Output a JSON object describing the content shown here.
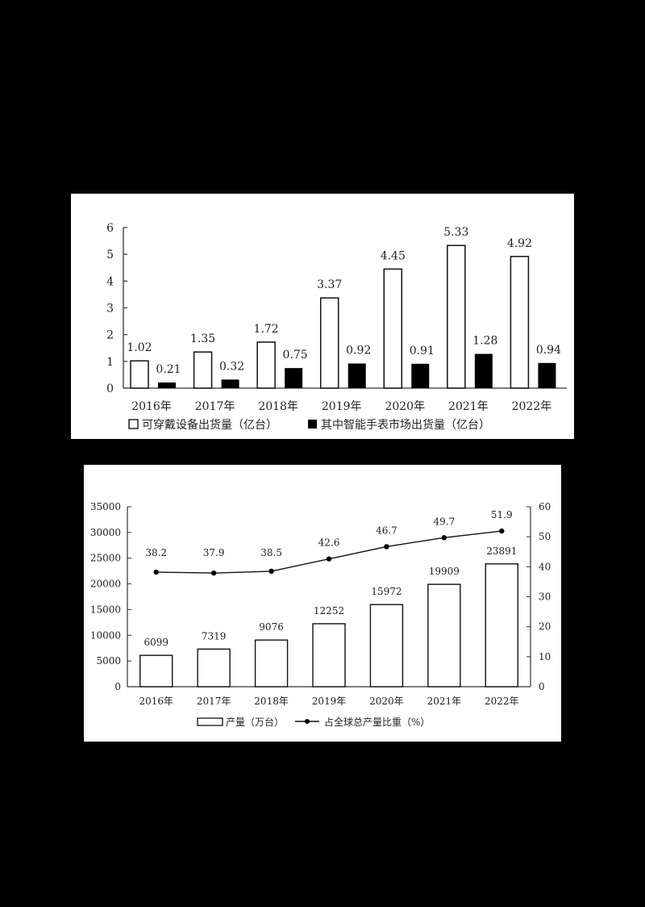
{
  "chart_data": [
    {
      "type": "bar",
      "title": "",
      "categories": [
        "2016年",
        "2017年",
        "2018年",
        "2019年",
        "2020年",
        "2021年",
        "2022年"
      ],
      "series": [
        {
          "name": "可穿戴设备出货量（亿台）",
          "style": "hollow",
          "values": [
            1.02,
            1.35,
            1.72,
            3.37,
            4.45,
            5.33,
            4.92
          ]
        },
        {
          "name": "其中智能手表市场出货量（亿台）",
          "style": "filled",
          "values": [
            0.21,
            0.32,
            0.75,
            0.92,
            0.91,
            1.28,
            0.94
          ]
        }
      ],
      "value_labels": {
        "s0": [
          "1.02",
          "1.35",
          "1.72",
          "3.37",
          "4.45",
          "5.33",
          "4.92"
        ],
        "s1": [
          "0.21",
          "0.32",
          "0.75",
          "0.92",
          "0.91",
          "1.28",
          "0.94"
        ]
      },
      "xlabel": "",
      "ylabel": "",
      "ylim": [
        0,
        6
      ],
      "yticks": [
        "0",
        "1",
        "2",
        "3",
        "4",
        "5",
        "6"
      ],
      "grid": false,
      "legend_position": "bottom"
    },
    {
      "type": "bar+line",
      "title": "",
      "categories": [
        "2016年",
        "2017年",
        "2018年",
        "2019年",
        "2020年",
        "2021年",
        "2022年"
      ],
      "series": [
        {
          "name": "产量（万台）",
          "type": "bar",
          "axis": "left",
          "values": [
            6099,
            7319,
            9076,
            12252,
            15972,
            19909,
            23891
          ]
        },
        {
          "name": "占全球总产量比重（%）",
          "type": "line",
          "axis": "right",
          "values": [
            38.2,
            37.9,
            38.5,
            42.6,
            46.7,
            49.7,
            51.9
          ]
        }
      ],
      "value_labels": {
        "bar": [
          "6099",
          "7319",
          "9076",
          "12252",
          "15972",
          "19909",
          "23891"
        ],
        "line": [
          "38.2",
          "37.9",
          "38.5",
          "42.6",
          "46.7",
          "49.7",
          "51.9"
        ]
      },
      "ylim_left": [
        0,
        35000
      ],
      "yticks_left": [
        "0",
        "5000",
        "10000",
        "15000",
        "20000",
        "25000",
        "30000",
        "35000"
      ],
      "ylim_right": [
        0,
        60
      ],
      "yticks_right": [
        "0",
        "10",
        "20",
        "30",
        "40",
        "50",
        "60"
      ],
      "grid": false,
      "legend_position": "bottom"
    }
  ],
  "chart1": {
    "legend": {
      "hollow": "可穿戴设备出货量（亿台）",
      "filled": "其中智能手表市场出货量（亿台）"
    }
  },
  "chart2": {
    "legend": {
      "bar": "产量（万台）",
      "line": "占全球总产量比重（%）"
    }
  },
  "colors": {
    "page_bg": "#000000",
    "panel_bg": "#ffffff",
    "ink": "#111111"
  }
}
